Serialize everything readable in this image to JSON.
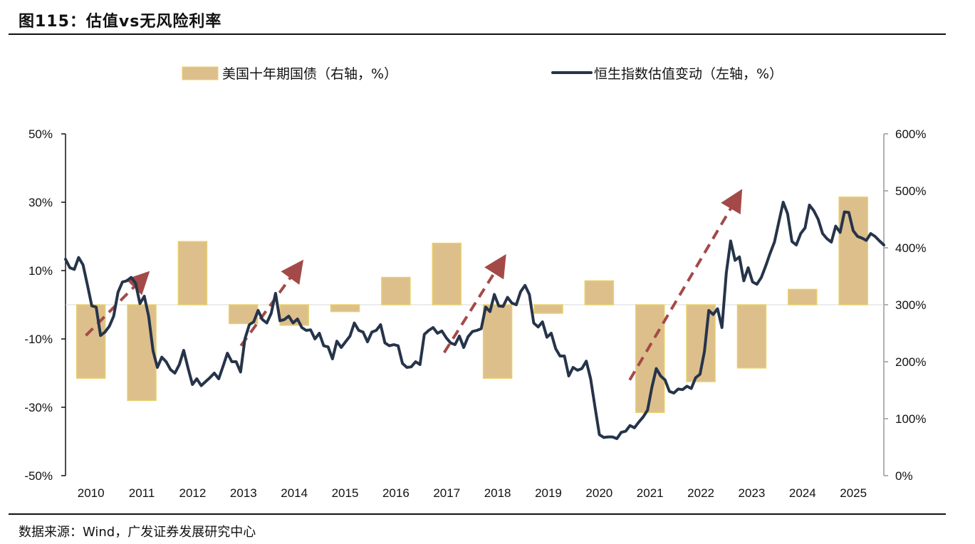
{
  "header": {
    "title": "图115：估值vs无风险利率"
  },
  "footer": {
    "source": "数据来源：Wind，广发证券发展研究中心"
  },
  "chart_data": {
    "type": "bar+line",
    "title": "图115：估值vs无风险利率",
    "legend": {
      "bar_label": "美国十年期国债（右轴，%）",
      "line_label": "恒生指数估值变动（左轴，%）",
      "placement": "top"
    },
    "colors": {
      "bar_fill": "#ddbf8c",
      "bar_stroke": "#e8d06a",
      "line": "#26344a",
      "arrow": "#a34a48",
      "axis_right": "#999999"
    },
    "left_axis": {
      "ylim": [
        -50,
        50
      ],
      "ticks": [
        50,
        30,
        10,
        -10,
        -30,
        -50
      ],
      "tick_labels": [
        "50%",
        "30%",
        "10%",
        "-10%",
        "-30%",
        "-50%"
      ]
    },
    "right_axis": {
      "ylim": [
        0,
        600
      ],
      "ticks": [
        600,
        500,
        400,
        300,
        200,
        100,
        0
      ],
      "tick_labels": [
        "600%",
        "500%",
        "400%",
        "300%",
        "200%",
        "100%",
        "0%"
      ]
    },
    "categories": [
      "2010",
      "2011",
      "2012",
      "2013",
      "2014",
      "2015",
      "2016",
      "2017",
      "2018",
      "2019",
      "2020",
      "2021",
      "2022",
      "2023",
      "2024",
      "2025"
    ],
    "bar_series": {
      "name": "美国十年期国债（右轴，%）",
      "axis": "left",
      "values": [
        -21.5,
        -28,
        18.5,
        -5.5,
        -6,
        -2,
        8,
        18,
        -21.5,
        -2.5,
        7,
        -31.5,
        -22.5,
        -18.5,
        4.5,
        31.5
      ]
    },
    "line_series": {
      "name": "恒生指数估值变动（左轴，%）",
      "axis": "right",
      "x_start": 2009.5,
      "x_end": 2025.6,
      "values": [
        380,
        365,
        362,
        383,
        370,
        335,
        298,
        296,
        246,
        252,
        262,
        280,
        322,
        340,
        342,
        348,
        338,
        302,
        315,
        280,
        219,
        190,
        208,
        200,
        186,
        180,
        195,
        220,
        189,
        160,
        170,
        158,
        165,
        172,
        180,
        170,
        192,
        215,
        200,
        200,
        182,
        240,
        265,
        270,
        290,
        274,
        268,
        285,
        320,
        272,
        274,
        280,
        268,
        275,
        260,
        255,
        256,
        240,
        250,
        228,
        226,
        205,
        236,
        225,
        235,
        245,
        268,
        255,
        252,
        235,
        252,
        255,
        265,
        233,
        228,
        230,
        228,
        197,
        190,
        191,
        200,
        195,
        248,
        255,
        260,
        250,
        254,
        242,
        233,
        230,
        245,
        225,
        244,
        253,
        255,
        258,
        296,
        288,
        318,
        298,
        297,
        313,
        303,
        300,
        323,
        334,
        318,
        268,
        261,
        270,
        243,
        250,
        223,
        210,
        210,
        175,
        190,
        185,
        188,
        201,
        170,
        120,
        72,
        67,
        68,
        68,
        65,
        76,
        78,
        88,
        84,
        94,
        103,
        115,
        155,
        188,
        175,
        168,
        148,
        145,
        152,
        151,
        157,
        153,
        172,
        178,
        218,
        290,
        283,
        293,
        260,
        356,
        412,
        378,
        384,
        342,
        365,
        340,
        336,
        348,
        368,
        390,
        410,
        445,
        480,
        460,
        411,
        405,
        425,
        435,
        475,
        465,
        450,
        425,
        416,
        410,
        438,
        427,
        463,
        462,
        430,
        420,
        417,
        413,
        425,
        420,
        412,
        405
      ]
    },
    "arrows": [
      {
        "from": [
          2009.9,
          -9
        ],
        "to": [
          2011.0,
          7.5
        ]
      },
      {
        "from": [
          2012.95,
          -12
        ],
        "to": [
          2014.05,
          10.5
        ]
      },
      {
        "from": [
          2016.95,
          -14
        ],
        "to": [
          2018.05,
          12
        ]
      },
      {
        "from": [
          2020.6,
          -22
        ],
        "to": [
          2022.7,
          31
        ]
      }
    ],
    "grid": false
  }
}
